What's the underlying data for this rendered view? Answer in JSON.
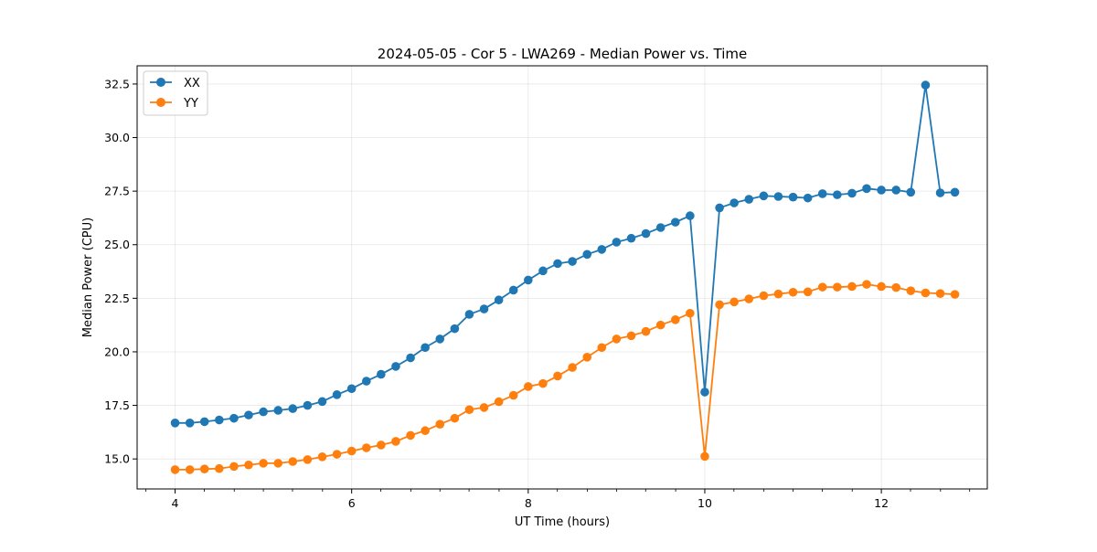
{
  "chart_data": {
    "type": "line",
    "title": "2024-05-05 - Cor 5 - LWA269 - Median Power vs. Time",
    "xlabel": "UT Time (hours)",
    "ylabel": "Median Power (CPU)",
    "xlim": [
      3.57,
      13.2
    ],
    "ylim": [
      13.6,
      33.35
    ],
    "x_ticks": [
      4,
      6,
      8,
      10,
      12
    ],
    "x_tick_labels": [
      "4",
      "6",
      "8",
      "10",
      "12"
    ],
    "x_minor_ticks": [
      3.67,
      4.33,
      4.67,
      5,
      5.33,
      5.67,
      6.33,
      6.67,
      7,
      7.33,
      7.67,
      8.33,
      8.67,
      9,
      9.33,
      9.67,
      10.33,
      10.67,
      11,
      11.33,
      11.67,
      12.33,
      12.67,
      13
    ],
    "y_ticks": [
      15.0,
      17.5,
      20.0,
      22.5,
      25.0,
      27.5,
      30.0,
      32.5
    ],
    "y_tick_labels": [
      "15.0",
      "17.5",
      "20.0",
      "22.5",
      "25.0",
      "27.5",
      "30.0",
      "32.5"
    ],
    "grid": true,
    "legend_position": "top-left",
    "x": [
      4.0,
      4.167,
      4.333,
      4.5,
      4.667,
      4.833,
      5.0,
      5.167,
      5.333,
      5.5,
      5.667,
      5.833,
      6.0,
      6.167,
      6.333,
      6.5,
      6.667,
      6.833,
      7.0,
      7.167,
      7.333,
      7.5,
      7.667,
      7.833,
      8.0,
      8.167,
      8.333,
      8.5,
      8.667,
      8.833,
      9.0,
      9.167,
      9.333,
      9.5,
      9.667,
      9.833,
      10.0,
      10.167,
      10.333,
      10.5,
      10.667,
      10.833,
      11.0,
      11.167,
      11.333,
      11.5,
      11.667,
      11.833,
      12.0,
      12.167,
      12.333,
      12.5,
      12.667,
      12.833
    ],
    "series": [
      {
        "name": "XX",
        "color": "#1f77b4",
        "values": [
          16.68,
          16.68,
          16.74,
          16.82,
          16.9,
          17.05,
          17.2,
          17.27,
          17.35,
          17.5,
          17.68,
          18.0,
          18.28,
          18.63,
          18.95,
          19.32,
          19.72,
          20.2,
          20.6,
          21.08,
          21.75,
          22.0,
          22.42,
          22.88,
          23.35,
          23.78,
          24.12,
          24.22,
          24.55,
          24.78,
          25.12,
          25.3,
          25.52,
          25.8,
          26.05,
          26.35,
          18.12,
          26.72,
          26.95,
          27.12,
          27.28,
          27.25,
          27.22,
          27.18,
          27.38,
          27.33,
          27.4,
          27.62,
          27.55,
          27.55,
          27.45,
          32.45,
          27.42,
          27.45
        ]
      },
      {
        "name": "YY",
        "color": "#ff7f0e",
        "values": [
          14.5,
          14.5,
          14.53,
          14.55,
          14.65,
          14.72,
          14.8,
          14.8,
          14.88,
          14.97,
          15.1,
          15.22,
          15.37,
          15.52,
          15.65,
          15.82,
          16.1,
          16.32,
          16.62,
          16.9,
          17.3,
          17.4,
          17.67,
          17.97,
          18.38,
          18.52,
          18.87,
          19.27,
          19.75,
          20.2,
          20.6,
          20.75,
          20.95,
          21.25,
          21.5,
          21.8,
          15.12,
          22.2,
          22.33,
          22.47,
          22.62,
          22.7,
          22.78,
          22.8,
          23.02,
          23.02,
          23.05,
          23.15,
          23.05,
          23.0,
          22.85,
          22.75,
          22.72,
          22.68
        ]
      }
    ]
  }
}
